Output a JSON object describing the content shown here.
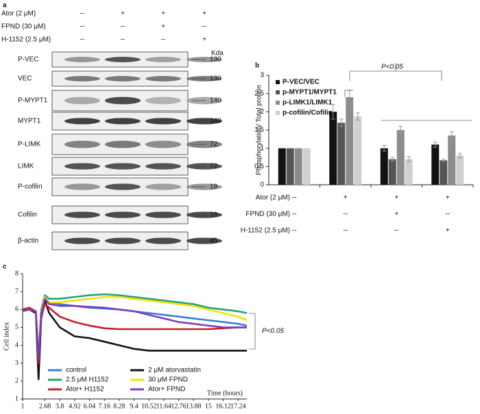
{
  "panel_a": {
    "label": "a",
    "unit": "Kda",
    "treatments": [
      {
        "name": "Ator (2 μM)",
        "lanes": [
          "--",
          "+",
          "+",
          "+"
        ]
      },
      {
        "name": "FPND (30 μM)",
        "lanes": [
          "--",
          "--",
          "+",
          "--"
        ]
      },
      {
        "name": "H-1152 (2.5 μM)",
        "lanes": [
          "--",
          "--",
          "--",
          "+"
        ]
      }
    ],
    "blots": [
      {
        "name": "P-VEC",
        "kda": 130
      },
      {
        "name": "VEC",
        "kda": 130
      },
      {
        "name": "P-MYPT1",
        "kda": 140
      },
      {
        "name": "MYPT1",
        "kda": 140
      },
      {
        "name": "P-LIMK",
        "kda": 72
      },
      {
        "name": "LIMK",
        "kda": 72
      },
      {
        "name": "P-cofilin",
        "kda": 19
      },
      {
        "name": "Cofilin",
        "kda": 19
      },
      {
        "name": "β-actin",
        "kda": 45
      }
    ]
  },
  "chart_data": [
    {
      "type": "bar",
      "label": "b",
      "y_label": "Phosphorylation/ Total protein",
      "annotation": "P<0.05",
      "categories": [
        null,
        null,
        null,
        null
      ],
      "ylim": [
        0,
        3
      ],
      "yticks": [
        0,
        0.5,
        1,
        1.5,
        2,
        2.5,
        3
      ],
      "series": [
        {
          "name": "P-VEC/VEC",
          "color": "#111111",
          "values": [
            1,
            2.0,
            1.0,
            1.1
          ],
          "errors": [
            0,
            0.2,
            0.08,
            0.07
          ]
        },
        {
          "name": "p-MYPT1/MYPT1",
          "color": "#555555",
          "values": [
            1,
            1.7,
            0.7,
            0.67
          ],
          "errors": [
            0,
            0.1,
            0.05,
            0.03
          ]
        },
        {
          "name": "p-LIMK1/LIMK1",
          "color": "#8c8c8c",
          "values": [
            1,
            2.4,
            1.5,
            1.35
          ],
          "errors": [
            0,
            0.2,
            0.1,
            0.1
          ]
        },
        {
          "name": "p-cofilin/Cofilin",
          "color": "#d0d0d0",
          "values": [
            1,
            1.87,
            0.7,
            0.8
          ],
          "errors": [
            0,
            0.1,
            0.07,
            0.06
          ]
        }
      ],
      "conditions": [
        {
          "name": "Ator (2 μM)",
          "values": [
            "--",
            "+",
            "+",
            "+"
          ]
        },
        {
          "name": "FPND (30 μM)",
          "values": [
            "--",
            "--",
            "+",
            "--"
          ]
        },
        {
          "name": "H-1152 (2.5 μM)",
          "values": [
            "--",
            "--",
            "--",
            "+"
          ]
        }
      ]
    },
    {
      "type": "line",
      "label": "c",
      "x_label": "Time (hours)",
      "y_label": "Cell index",
      "annotation": "P<0.05",
      "x": [
        1,
        1.5,
        2,
        2.2,
        2.4,
        2.68,
        3,
        3.8,
        4.92,
        6.04,
        7.16,
        8.28,
        9.4,
        10.52,
        11.64,
        12.76,
        13.88,
        15,
        16.12,
        17.24,
        17.9
      ],
      "xlim": [
        1,
        17.9
      ],
      "xticks": [
        1,
        2.68,
        3.8,
        4.92,
        6.04,
        7.16,
        8.28,
        9.4,
        10.52,
        11.64,
        12.76,
        13.88,
        15,
        16.12,
        17.24
      ],
      "ylim": [
        1,
        8
      ],
      "yticks": [
        1,
        2,
        3,
        4,
        5,
        6,
        7,
        8
      ],
      "series": [
        {
          "name": "control",
          "color": "#3a7dd8",
          "values": [
            5.9,
            6.0,
            5.8,
            3.0,
            5.7,
            6.6,
            6.4,
            6.3,
            6.2,
            6.1,
            6.05,
            6.0,
            5.9,
            5.8,
            5.7,
            5.6,
            5.5,
            5.4,
            5.3,
            5.2,
            5.1
          ]
        },
        {
          "name": "2 μM atorvastatin",
          "color": "#111111",
          "values": [
            6.0,
            6.0,
            5.8,
            2.1,
            5.5,
            6.5,
            5.8,
            5.0,
            4.5,
            4.4,
            4.2,
            4.0,
            3.8,
            3.7,
            3.7,
            3.7,
            3.7,
            3.7,
            3.7,
            3.7,
            3.7
          ]
        },
        {
          "name": "2.5 μM H1152",
          "color": "#1fa37a",
          "values": [
            5.9,
            6.0,
            5.9,
            3.5,
            6.0,
            6.8,
            6.6,
            6.6,
            6.7,
            6.8,
            6.85,
            6.8,
            6.7,
            6.6,
            6.5,
            6.4,
            6.3,
            6.1,
            6.0,
            5.9,
            5.8
          ]
        },
        {
          "name": "30 μM FPND",
          "color": "#f2e200",
          "values": [
            5.9,
            6.0,
            5.9,
            3.4,
            5.9,
            6.7,
            6.4,
            6.4,
            6.5,
            6.6,
            6.7,
            6.7,
            6.6,
            6.5,
            6.4,
            6.3,
            6.2,
            6.0,
            5.8,
            5.6,
            5.4
          ]
        },
        {
          "name": "Ator+ H1152",
          "color": "#c0202a",
          "values": [
            6.0,
            6.1,
            5.9,
            3.0,
            5.6,
            6.3,
            6.1,
            5.6,
            5.3,
            5.1,
            4.95,
            4.9,
            4.9,
            4.9,
            4.9,
            4.9,
            4.9,
            4.9,
            4.95,
            5.0,
            5.0
          ]
        },
        {
          "name": "Ator+ FPND",
          "color": "#7a3ec2",
          "values": [
            5.9,
            6.0,
            5.9,
            3.2,
            5.8,
            6.6,
            6.3,
            6.2,
            6.2,
            6.15,
            6.1,
            6.0,
            5.9,
            5.7,
            5.5,
            5.3,
            5.2,
            5.1,
            5.0,
            5.0,
            5.0
          ]
        }
      ]
    }
  ]
}
